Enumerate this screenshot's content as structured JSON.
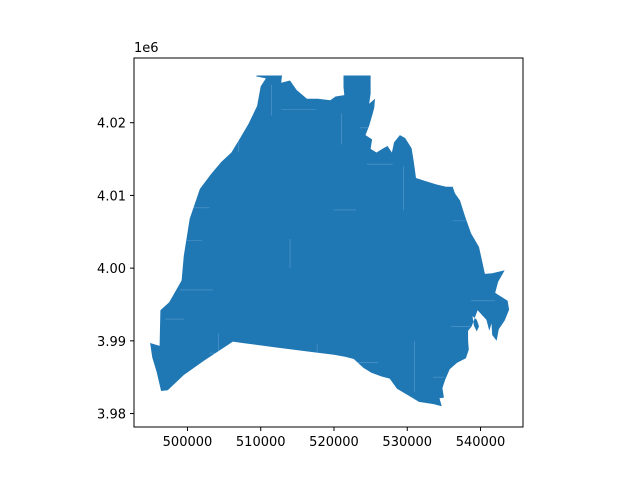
{
  "chart_data": {
    "type": "map",
    "title": "",
    "xlabel": "",
    "ylabel": "",
    "x_offset_label": "",
    "y_offset_label": "1e6",
    "xlim": [
      492700,
      545800
    ],
    "ylim": [
      3978150,
      4028900
    ],
    "x_ticks": [
      {
        "value": 500000,
        "label": "500000"
      },
      {
        "value": 510000,
        "label": "510000"
      },
      {
        "value": 520000,
        "label": "520000"
      },
      {
        "value": 530000,
        "label": "530000"
      },
      {
        "value": 540000,
        "label": "540000"
      }
    ],
    "y_ticks": [
      {
        "value": 3980000,
        "label": "3.98"
      },
      {
        "value": 3990000,
        "label": "3.99"
      },
      {
        "value": 4000000,
        "label": "4.00"
      },
      {
        "value": 4010000,
        "label": "4.01"
      },
      {
        "value": 4020000,
        "label": "4.02"
      }
    ],
    "grid": false,
    "fill_color": "#1f77b4",
    "internal_line_color": "#5a9bd0",
    "region_outline": [
      [
        494900,
        3989700
      ],
      [
        496200,
        3989300
      ],
      [
        496300,
        3994200
      ],
      [
        497500,
        3995300
      ],
      [
        499200,
        3998300
      ],
      [
        499500,
        4001700
      ],
      [
        500300,
        4006800
      ],
      [
        501700,
        4010900
      ],
      [
        503200,
        4012900
      ],
      [
        504600,
        4014600
      ],
      [
        506000,
        4015900
      ],
      [
        507200,
        4017900
      ],
      [
        508300,
        4019800
      ],
      [
        509500,
        4022300
      ],
      [
        510000,
        4025000
      ],
      [
        510700,
        4026100
      ],
      [
        509300,
        4026400
      ],
      [
        509500,
        4026500
      ],
      [
        512900,
        4026500
      ],
      [
        512800,
        4025500
      ],
      [
        514000,
        4025800
      ],
      [
        514900,
        4024500
      ],
      [
        516300,
        4023300
      ],
      [
        517800,
        4023300
      ],
      [
        519500,
        4023100
      ],
      [
        520200,
        4023600
      ],
      [
        521400,
        4023800
      ],
      [
        521300,
        4024900
      ],
      [
        521300,
        4026500
      ],
      [
        525000,
        4026500
      ],
      [
        525000,
        4024000
      ],
      [
        524800,
        4022600
      ],
      [
        525600,
        4023300
      ],
      [
        525500,
        4022100
      ],
      [
        525300,
        4021300
      ],
      [
        524800,
        4019600
      ],
      [
        524300,
        4018300
      ],
      [
        525200,
        4017700
      ],
      [
        525000,
        4016400
      ],
      [
        525800,
        4015900
      ],
      [
        526600,
        4016400
      ],
      [
        527300,
        4016800
      ],
      [
        527900,
        4015900
      ],
      [
        528200,
        4017300
      ],
      [
        529000,
        4018300
      ],
      [
        529700,
        4017900
      ],
      [
        530600,
        4016500
      ],
      [
        530900,
        4014600
      ],
      [
        531200,
        4012400
      ],
      [
        532400,
        4012000
      ],
      [
        534000,
        4011500
      ],
      [
        535300,
        4011200
      ],
      [
        536200,
        4011200
      ],
      [
        536500,
        4010300
      ],
      [
        537200,
        4009300
      ],
      [
        537900,
        4007100
      ],
      [
        538700,
        4004800
      ],
      [
        539800,
        4002900
      ],
      [
        540300,
        4000600
      ],
      [
        540600,
        3999200
      ],
      [
        541600,
        3999300
      ],
      [
        542900,
        3999600
      ],
      [
        543300,
        3999700
      ],
      [
        542400,
        3998100
      ],
      [
        542000,
        3996600
      ],
      [
        543700,
        3995500
      ],
      [
        543900,
        3994300
      ],
      [
        543300,
        3992800
      ],
      [
        542500,
        3991600
      ],
      [
        542200,
        3990000
      ],
      [
        541600,
        3990800
      ],
      [
        541500,
        3992400
      ],
      [
        541200,
        3991400
      ],
      [
        540800,
        3992900
      ],
      [
        539600,
        3994200
      ],
      [
        538800,
        3992000
      ],
      [
        538300,
        3991400
      ],
      [
        538300,
        3990000
      ],
      [
        538400,
        3988800
      ],
      [
        538000,
        3987600
      ],
      [
        536800,
        3987000
      ],
      [
        535800,
        3986100
      ],
      [
        535200,
        3984700
      ],
      [
        534800,
        3983500
      ],
      [
        535000,
        3982200
      ],
      [
        534400,
        3982100
      ],
      [
        534700,
        3981000
      ],
      [
        533600,
        3981300
      ],
      [
        531600,
        3981600
      ],
      [
        530300,
        3982400
      ],
      [
        528600,
        3983400
      ],
      [
        527600,
        3984800
      ],
      [
        526500,
        3985100
      ],
      [
        525100,
        3985600
      ],
      [
        524000,
        3986300
      ],
      [
        522700,
        3987500
      ],
      [
        521500,
        3987800
      ],
      [
        520000,
        3988100
      ],
      [
        517500,
        3988400
      ],
      [
        512000,
        3989100
      ],
      [
        507500,
        3989700
      ],
      [
        506200,
        3989900
      ],
      [
        502300,
        3987300
      ],
      [
        499500,
        3985300
      ],
      [
        497300,
        3983200
      ],
      [
        496400,
        3983100
      ],
      [
        495800,
        3985700
      ],
      [
        495200,
        3987700
      ]
    ],
    "holes": [
      [
        [
          538900,
          3993400
        ],
        [
          539100,
          3992100
        ],
        [
          539500,
          3991300
        ],
        [
          539800,
          3992000
        ],
        [
          539500,
          3992900
        ]
      ]
    ]
  }
}
